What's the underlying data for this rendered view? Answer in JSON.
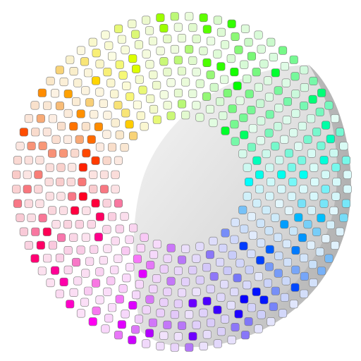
{
  "artwork": {
    "subject": "dot-ring-with-shadow-icon",
    "colors": {
      "background": "#ffffff",
      "shadow_light": "#f4f4f4",
      "shadow_dark": "#b9b9b9",
      "dot_stroke": "#7a7a7a"
    },
    "hue_cycle_note_colors": [
      "#ff1a1a",
      "#ff8000",
      "#ffd000",
      "#80ff00",
      "#00e070",
      "#00e0e0",
      "#0080ff",
      "#2020ff",
      "#8000ff",
      "#ff40ff",
      "#ff0080"
    ]
  }
}
